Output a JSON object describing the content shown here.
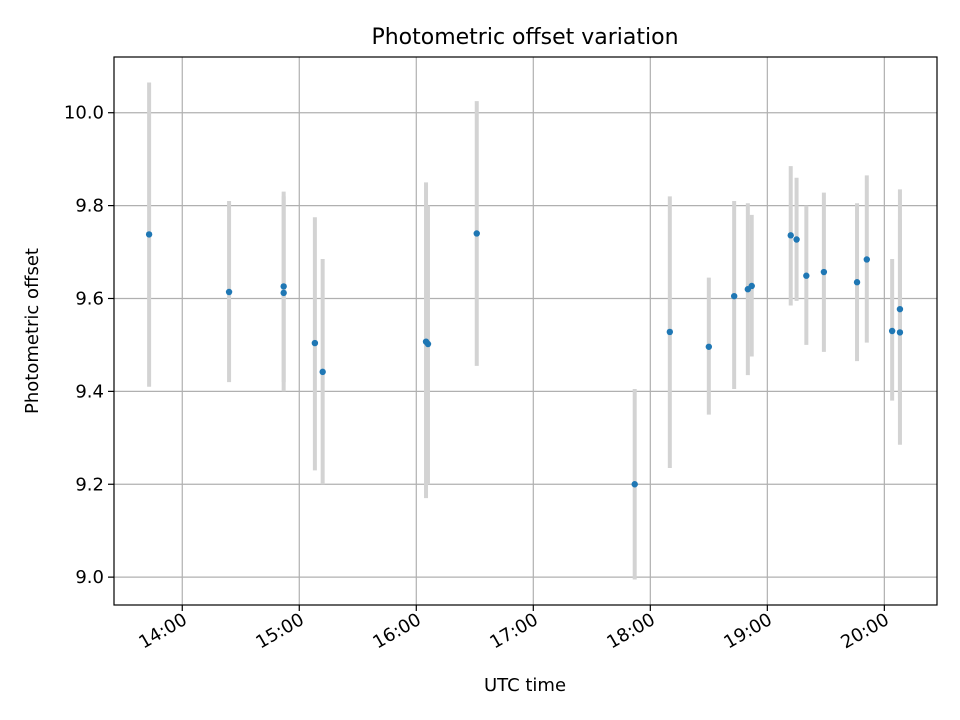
{
  "chart_data": {
    "type": "scatter",
    "title": "Photometric offset variation",
    "xlabel": "UTC time",
    "ylabel": "Photometric offset",
    "x_ticks": [
      "14:00",
      "15:00",
      "16:00",
      "17:00",
      "18:00",
      "19:00",
      "20:00"
    ],
    "y_ticks": [
      "9.0",
      "9.2",
      "9.4",
      "9.6",
      "9.8",
      "10.0"
    ],
    "xlim": [
      "13:25",
      "20:27"
    ],
    "ylim": [
      8.94,
      10.12
    ],
    "grid": true,
    "colors": {
      "point": "#1f77b4",
      "errorbar": "#d3d3d3",
      "grid": "#b0b0b0"
    },
    "points": [
      {
        "x": "13:43",
        "y": 9.738,
        "low": 9.41,
        "high": 10.065
      },
      {
        "x": "14:24",
        "y": 9.614,
        "low": 9.42,
        "high": 9.81
      },
      {
        "x": "14:52",
        "y": 9.626,
        "low": 9.42,
        "high": 9.83
      },
      {
        "x": "14:52",
        "y": 9.612,
        "low": 9.4,
        "high": 9.82
      },
      {
        "x": "15:08",
        "y": 9.504,
        "low": 9.23,
        "high": 9.775
      },
      {
        "x": "15:12",
        "y": 9.442,
        "low": 9.2,
        "high": 9.685
      },
      {
        "x": "16:05",
        "y": 9.507,
        "low": 9.17,
        "high": 9.85
      },
      {
        "x": "16:06",
        "y": 9.502,
        "low": 9.2,
        "high": 9.8
      },
      {
        "x": "16:31",
        "y": 9.74,
        "low": 9.455,
        "high": 10.025
      },
      {
        "x": "17:52",
        "y": 9.2,
        "low": 8.995,
        "high": 9.405
      },
      {
        "x": "18:10",
        "y": 9.528,
        "low": 9.235,
        "high": 9.82
      },
      {
        "x": "18:30",
        "y": 9.496,
        "low": 9.35,
        "high": 9.645
      },
      {
        "x": "18:43",
        "y": 9.605,
        "low": 9.405,
        "high": 9.81
      },
      {
        "x": "18:50",
        "y": 9.62,
        "low": 9.435,
        "high": 9.805
      },
      {
        "x": "18:52",
        "y": 9.627,
        "low": 9.475,
        "high": 9.78
      },
      {
        "x": "19:12",
        "y": 9.736,
        "low": 9.585,
        "high": 9.885
      },
      {
        "x": "19:15",
        "y": 9.727,
        "low": 9.595,
        "high": 9.86
      },
      {
        "x": "19:20",
        "y": 9.649,
        "low": 9.5,
        "high": 9.8
      },
      {
        "x": "19:29",
        "y": 9.657,
        "low": 9.485,
        "high": 9.828
      },
      {
        "x": "19:46",
        "y": 9.635,
        "low": 9.465,
        "high": 9.805
      },
      {
        "x": "19:51",
        "y": 9.684,
        "low": 9.505,
        "high": 9.865
      },
      {
        "x": "20:04",
        "y": 9.53,
        "low": 9.38,
        "high": 9.685
      },
      {
        "x": "20:08",
        "y": 9.577,
        "low": 9.385,
        "high": 9.77
      },
      {
        "x": "20:08",
        "y": 9.527,
        "low": 9.285,
        "high": 9.835
      }
    ]
  }
}
